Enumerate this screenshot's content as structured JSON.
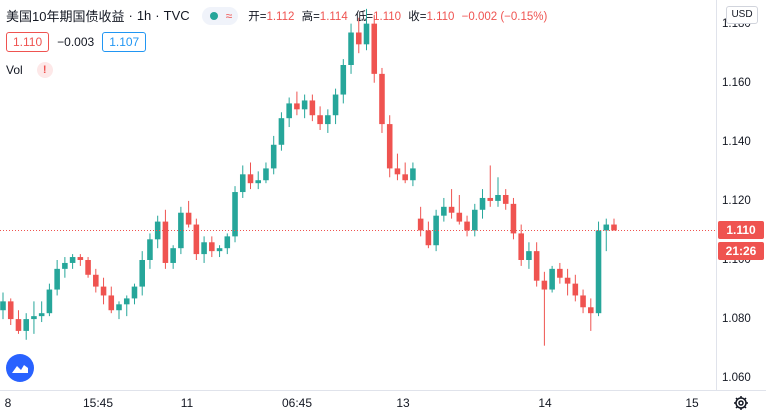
{
  "legend": {
    "symbol": "美国10年期国债收益",
    "interval": "1h",
    "source": "TVC",
    "wave_glyph": "≈",
    "open_label": "开=",
    "open_value": "1.112",
    "high_label": "高=",
    "high_value": "1.114",
    "low_label": "低=",
    "low_value": "1.110",
    "close_label": "收=",
    "close_value": "1.110",
    "change": "−0.002 (−0.15%)"
  },
  "quote": {
    "bid": "1.110",
    "spread": "−0.003",
    "ask": "1.107"
  },
  "volume": {
    "label": "Vol",
    "warning": "!"
  },
  "currency_button": "USD",
  "colors": {
    "up": "#26a69a",
    "down": "#ef5350",
    "grid": "#e0e3eb",
    "accent": "#2962ff"
  },
  "chart_data": {
    "type": "candlestick",
    "y_ticks": [
      "1.180",
      "1.160",
      "1.140",
      "1.120",
      "1.100",
      "1.080",
      "1.060"
    ],
    "x_ticks": [
      "8",
      "15:45",
      "11",
      "06:45",
      "13",
      "14",
      "15"
    ],
    "ylim": [
      1.056,
      1.188
    ],
    "last_price": "1.110",
    "countdown": "21:26",
    "candles": [
      [
        1.083,
        1.089,
        1.08,
        1.086
      ],
      [
        1.086,
        1.087,
        1.078,
        1.08
      ],
      [
        1.08,
        1.083,
        1.075,
        1.076
      ],
      [
        1.076,
        1.082,
        1.073,
        1.08
      ],
      [
        1.08,
        1.086,
        1.075,
        1.081
      ],
      [
        1.081,
        1.086,
        1.079,
        1.082
      ],
      [
        1.082,
        1.092,
        1.081,
        1.09
      ],
      [
        1.09,
        1.1,
        1.088,
        1.097
      ],
      [
        1.097,
        1.101,
        1.094,
        1.099
      ],
      [
        1.099,
        1.102,
        1.097,
        1.101
      ],
      [
        1.101,
        1.102,
        1.098,
        1.1
      ],
      [
        1.1,
        1.101,
        1.094,
        1.095
      ],
      [
        1.095,
        1.097,
        1.089,
        1.091
      ],
      [
        1.091,
        1.094,
        1.085,
        1.088
      ],
      [
        1.088,
        1.091,
        1.082,
        1.083
      ],
      [
        1.083,
        1.086,
        1.08,
        1.085
      ],
      [
        1.085,
        1.088,
        1.081,
        1.087
      ],
      [
        1.087,
        1.092,
        1.085,
        1.091
      ],
      [
        1.091,
        1.103,
        1.088,
        1.1
      ],
      [
        1.1,
        1.109,
        1.097,
        1.107
      ],
      [
        1.107,
        1.115,
        1.104,
        1.113
      ],
      [
        1.113,
        1.117,
        1.097,
        1.099
      ],
      [
        1.099,
        1.105,
        1.097,
        1.104
      ],
      [
        1.104,
        1.118,
        1.102,
        1.116
      ],
      [
        1.116,
        1.12,
        1.111,
        1.112
      ],
      [
        1.112,
        1.114,
        1.1,
        1.102
      ],
      [
        1.102,
        1.108,
        1.099,
        1.106
      ],
      [
        1.106,
        1.108,
        1.101,
        1.103
      ],
      [
        1.103,
        1.105,
        1.101,
        1.104
      ],
      [
        1.104,
        1.109,
        1.102,
        1.108
      ],
      [
        1.108,
        1.125,
        1.106,
        1.123
      ],
      [
        1.123,
        1.132,
        1.121,
        1.129
      ],
      [
        1.129,
        1.133,
        1.124,
        1.126
      ],
      [
        1.126,
        1.13,
        1.124,
        1.127
      ],
      [
        1.127,
        1.133,
        1.126,
        1.131
      ],
      [
        1.131,
        1.142,
        1.129,
        1.139
      ],
      [
        1.139,
        1.15,
        1.137,
        1.148
      ],
      [
        1.148,
        1.155,
        1.145,
        1.153
      ],
      [
        1.153,
        1.157,
        1.149,
        1.151
      ],
      [
        1.151,
        1.156,
        1.148,
        1.154
      ],
      [
        1.154,
        1.156,
        1.147,
        1.149
      ],
      [
        1.149,
        1.152,
        1.144,
        1.146
      ],
      [
        1.146,
        1.151,
        1.143,
        1.149
      ],
      [
        1.149,
        1.158,
        1.146,
        1.156
      ],
      [
        1.156,
        1.168,
        1.153,
        1.166
      ],
      [
        1.166,
        1.18,
        1.163,
        1.177
      ],
      [
        1.177,
        1.182,
        1.17,
        1.173
      ],
      [
        1.173,
        1.185,
        1.171,
        1.18
      ],
      [
        1.18,
        1.183,
        1.16,
        1.163
      ],
      [
        1.163,
        1.165,
        1.143,
        1.146
      ],
      [
        1.146,
        1.149,
        1.128,
        1.131
      ],
      [
        1.131,
        1.136,
        1.127,
        1.129
      ],
      [
        1.129,
        1.133,
        1.126,
        1.127
      ],
      [
        1.127,
        1.133,
        1.125,
        1.131
      ],
      [
        1.114,
        1.118,
        1.108,
        1.11
      ],
      [
        1.11,
        1.113,
        1.104,
        1.105
      ],
      [
        1.105,
        1.117,
        1.103,
        1.115
      ],
      [
        1.115,
        1.121,
        1.113,
        1.118
      ],
      [
        1.118,
        1.124,
        1.114,
        1.116
      ],
      [
        1.116,
        1.122,
        1.112,
        1.113
      ],
      [
        1.113,
        1.115,
        1.108,
        1.11
      ],
      [
        1.11,
        1.119,
        1.108,
        1.117
      ],
      [
        1.117,
        1.124,
        1.114,
        1.121
      ],
      [
        1.121,
        1.132,
        1.118,
        1.12
      ],
      [
        1.12,
        1.128,
        1.118,
        1.122
      ],
      [
        1.122,
        1.124,
        1.117,
        1.119
      ],
      [
        1.119,
        1.121,
        1.107,
        1.109
      ],
      [
        1.109,
        1.112,
        1.098,
        1.1
      ],
      [
        1.1,
        1.106,
        1.097,
        1.103
      ],
      [
        1.103,
        1.106,
        1.091,
        1.093
      ],
      [
        1.093,
        1.096,
        1.071,
        1.09
      ],
      [
        1.09,
        1.098,
        1.089,
        1.097
      ],
      [
        1.097,
        1.099,
        1.092,
        1.094
      ],
      [
        1.094,
        1.097,
        1.088,
        1.092
      ],
      [
        1.092,
        1.095,
        1.086,
        1.088
      ],
      [
        1.088,
        1.09,
        1.082,
        1.084
      ],
      [
        1.084,
        1.087,
        1.076,
        1.082
      ],
      [
        1.082,
        1.113,
        1.081,
        1.11
      ],
      [
        1.11,
        1.114,
        1.103,
        1.112
      ],
      [
        1.112,
        1.114,
        1.11,
        1.11
      ]
    ]
  }
}
